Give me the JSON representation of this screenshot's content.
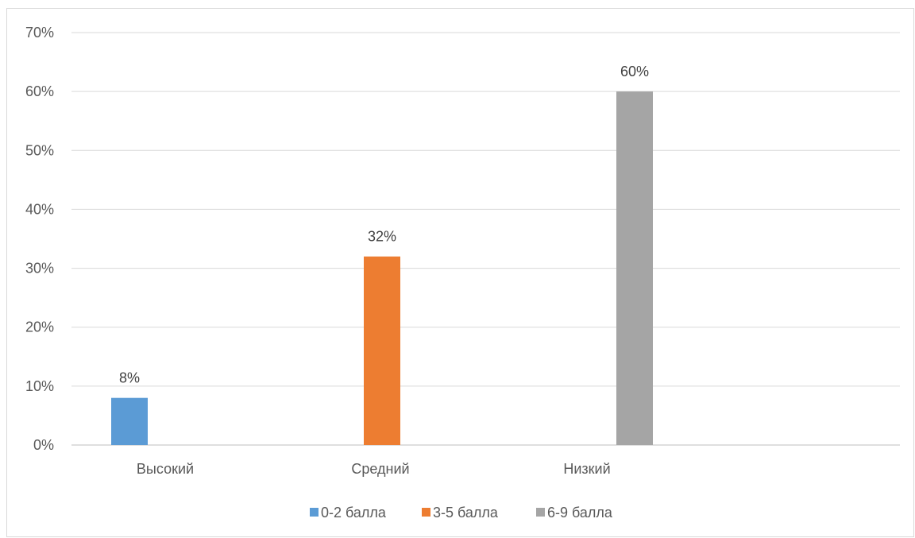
{
  "chart_data": {
    "type": "bar",
    "categories": [
      "Высокий",
      "Средний",
      "Низкий"
    ],
    "series": [
      {
        "name": "0-2 балла",
        "values": [
          8,
          null,
          null
        ],
        "color": "#5b9bd5"
      },
      {
        "name": "3-5 балла",
        "values": [
          null,
          32,
          null
        ],
        "color": "#ed7d31"
      },
      {
        "name": "6-9 балла",
        "values": [
          null,
          null,
          60
        ],
        "color": "#a5a5a5"
      }
    ],
    "data_labels": [
      "8%",
      "32%",
      "60%"
    ],
    "y_ticks": [
      "0%",
      "10%",
      "20%",
      "30%",
      "40%",
      "50%",
      "60%",
      "70%"
    ],
    "ylim": [
      0,
      70
    ],
    "y_unit": "%",
    "grid": true,
    "legend_position": "bottom",
    "title": "",
    "xlabel": "",
    "ylabel": ""
  }
}
